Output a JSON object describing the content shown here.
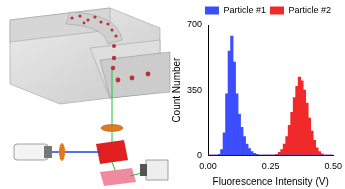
{
  "chart_data": {
    "type": "histogram",
    "x_label": "Fluorescence Intensity (V)",
    "y_label": "Count Number",
    "bins": [
      0.0,
      0.01,
      0.02,
      0.03,
      0.04,
      0.05,
      0.06,
      0.07,
      0.08,
      0.09,
      0.1,
      0.11,
      0.12,
      0.13,
      0.14,
      0.15,
      0.16,
      0.17,
      0.18,
      0.19,
      0.2,
      0.21,
      0.22,
      0.23,
      0.24,
      0.25,
      0.26,
      0.27,
      0.28,
      0.29,
      0.3,
      0.31,
      0.32,
      0.33,
      0.34,
      0.35,
      0.36,
      0.37,
      0.38,
      0.39,
      0.4,
      0.41,
      0.42,
      0.43,
      0.44,
      0.45,
      0.46,
      0.47,
      0.48,
      0.49,
      0.5
    ],
    "series": [
      {
        "name": "Particle #1",
        "color": "#3b4dff",
        "values": [
          0,
          0,
          0,
          0,
          5,
          30,
          120,
          330,
          560,
          640,
          500,
          330,
          220,
          150,
          100,
          60,
          35,
          20,
          10,
          5,
          0,
          0,
          0,
          0,
          0,
          0,
          0,
          0,
          0,
          0,
          0,
          0,
          0,
          0,
          0,
          0,
          0,
          0,
          0,
          0,
          0,
          0,
          0,
          0,
          0,
          0,
          0,
          0,
          0,
          0
        ]
      },
      {
        "name": "Particle #2",
        "color": "#f02a2a",
        "values": [
          0,
          0,
          0,
          0,
          0,
          0,
          0,
          0,
          0,
          0,
          0,
          0,
          0,
          0,
          0,
          0,
          0,
          0,
          0,
          0,
          0,
          0,
          0,
          0,
          0,
          0,
          0,
          5,
          15,
          30,
          60,
          100,
          160,
          230,
          310,
          370,
          420,
          400,
          350,
          280,
          200,
          130,
          80,
          40,
          20,
          8,
          0,
          0,
          0,
          0
        ]
      }
    ],
    "xlim": [
      0,
      0.5
    ],
    "xticks": [
      {
        "value": 0,
        "label": "0.00"
      },
      {
        "value": 0.25,
        "label": "0.25"
      },
      {
        "value": 0.5,
        "label": "0.50"
      }
    ],
    "ylim": [
      0,
      700
    ],
    "yticks": [
      0,
      350,
      700
    ],
    "grid": false,
    "legend": "upper right"
  }
}
